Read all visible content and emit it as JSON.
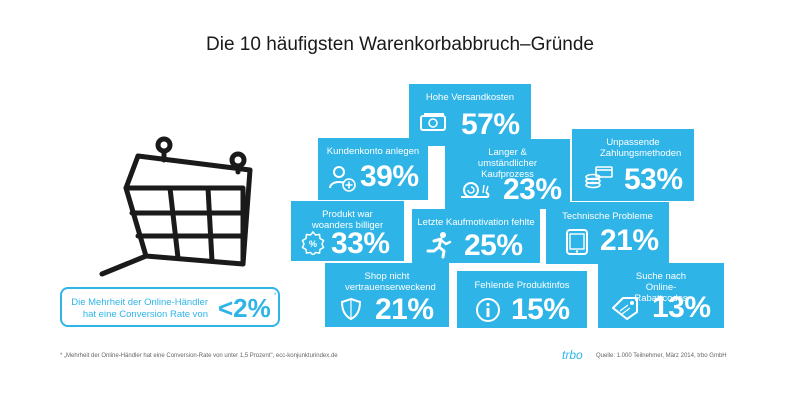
{
  "title": "Die 10 häufigsten Warenkorbabbruch–Gründe",
  "chart_data": {
    "type": "table",
    "title": "Die 10 häufigsten Warenkorbabbruch–Gründe",
    "categories": [
      "Hohe Versandkosten",
      "Kundenkonto anlegen",
      "Langer & umständlicher Kaufprozess",
      "Unpassende Zahlungsmethoden",
      "Produkt war woanders billiger",
      "Letzte Kaufmotivation fehlte",
      "Technische Probleme",
      "Shop nicht vertrauenserweckend",
      "Fehlende Produktinfos",
      "Suche nach Online-Rabattcodes"
    ],
    "values": [
      57,
      39,
      23,
      53,
      33,
      25,
      21,
      21,
      15,
      13
    ],
    "unit": "%"
  },
  "tiles": [
    {
      "label": "Hohe Versandkosten",
      "value": "57%",
      "icon": "money-icon"
    },
    {
      "label": "Kundenkonto anlegen",
      "value": "39%",
      "icon": "add-user-icon"
    },
    {
      "label": "Langer & umständlicher Kaufprozess",
      "value": "23%",
      "icon": "snail-icon"
    },
    {
      "label": "Unpassende Zahlungsmethoden",
      "value": "53%",
      "icon": "coins-cards-icon"
    },
    {
      "label": "Produkt war woanders billiger",
      "value": "33%",
      "icon": "discount-badge-icon"
    },
    {
      "label": "Letzte Kaufmotivation fehlte",
      "value": "25%",
      "icon": "running-person-icon"
    },
    {
      "label": "Technische Probleme",
      "value": "21%",
      "icon": "smartphone-icon"
    },
    {
      "label": "Shop nicht vertrauenserweckend",
      "value": "21%",
      "icon": "shield-icon"
    },
    {
      "label": "Fehlende Produktinfos",
      "value": "15%",
      "icon": "info-icon"
    },
    {
      "label": "Suche nach Online-Rabattcodes",
      "value": "13%",
      "icon": "price-tag-icon"
    }
  ],
  "callout": {
    "text": "Die Mehrheit der Online-Händler hat eine Conversion Rate von",
    "value": "<2%",
    "star": "*"
  },
  "footnote": "* „Mehrheit der Online-Händler hat eine Conversion-Rate von unter 1,5 Prozent\", ecc-konjunkturindex.de",
  "logo": "trbo",
  "source": "Quelle: 1.000 Teilnehmer, März 2014, trbo GmbH",
  "colors": {
    "accent": "#2fb4e8",
    "text": "#1a1a1a"
  }
}
